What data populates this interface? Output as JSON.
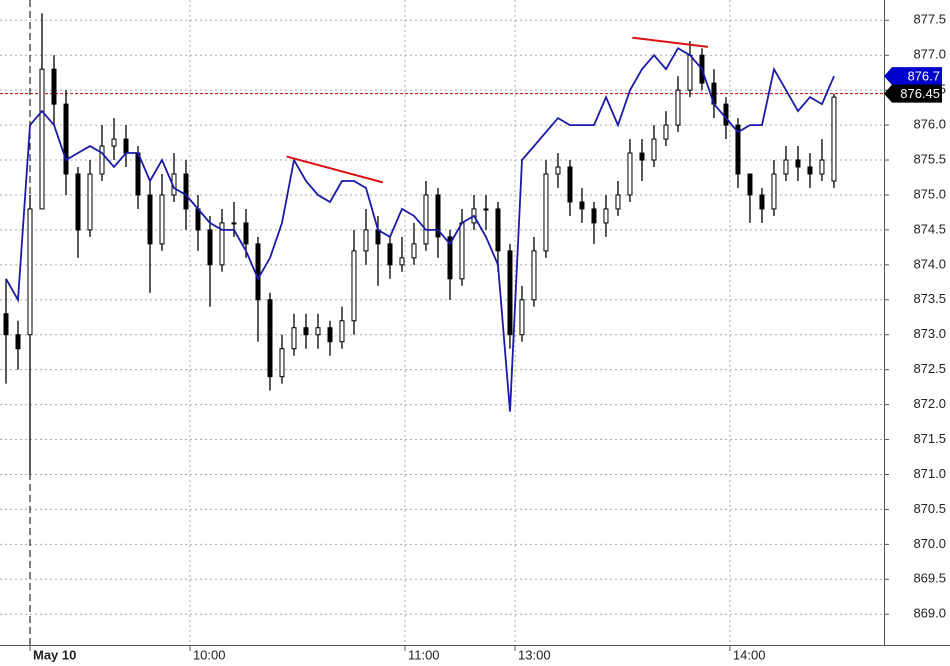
{
  "chart_data": {
    "type": "candlestick",
    "xlim": [
      -0.5,
      73.17
    ],
    "xticks": [
      {
        "value": 2,
        "label": "May 10"
      },
      {
        "value": 15.33,
        "label": "10:00"
      },
      {
        "value": 33.25,
        "label": "11:00"
      },
      {
        "value": 42.42,
        "label": "13:00"
      },
      {
        "value": 60.33,
        "label": "14:00"
      }
    ],
    "ylim": [
      868.56,
      877.79
    ],
    "yticks": [
      {
        "value": 869,
        "label": "869.0"
      },
      869.5,
      {
        "value": 870,
        "label": "870.0"
      },
      870.5,
      {
        "value": 871,
        "label": "871.0"
      },
      871.5,
      {
        "value": 872,
        "label": "872.0"
      },
      872.5,
      {
        "value": 873,
        "label": "873.0"
      },
      873.5,
      {
        "value": 874,
        "label": "874.0"
      },
      874.5,
      {
        "value": 875,
        "label": "875.0"
      },
      875.5,
      {
        "value": 876,
        "label": "876.0"
      },
      876.5,
      {
        "value": 877,
        "label": "877.0"
      },
      877.5
    ],
    "grid": true,
    "ohlc": {
      "open": [
        873.3,
        873.0,
        873.0,
        874.8,
        876.8,
        876.3,
        875.3,
        874.5,
        875.3,
        875.7,
        875.8,
        875.6,
        875.0,
        874.3,
        875.0,
        875.3,
        874.8,
        874.5,
        874.0,
        874.6,
        874.6,
        874.3,
        873.5,
        872.4,
        872.8,
        873.1,
        873.0,
        873.1,
        872.9,
        873.2,
        874.2,
        874.5,
        874.3,
        874.0,
        874.1,
        874.3,
        875.0,
        874.4,
        873.8,
        874.6,
        874.8,
        874.8,
        874.2,
        873.0,
        873.5,
        874.2,
        875.3,
        875.4,
        874.9,
        874.8,
        874.6,
        874.8,
        875.0,
        875.6,
        875.5,
        875.8,
        876.0,
        876.5,
        877.0,
        876.6,
        876.3,
        876.0,
        875.3,
        875.0,
        874.8,
        875.3,
        875.5,
        875.4,
        875.3,
        875.2
      ],
      "high": [
        873.8,
        873.2,
        875.0,
        877.6,
        877.0,
        876.5,
        875.4,
        875.5,
        876.0,
        876.1,
        876.0,
        875.7,
        875.2,
        875.3,
        875.6,
        875.5,
        875.0,
        874.7,
        874.8,
        874.9,
        874.8,
        874.4,
        873.6,
        873.0,
        873.3,
        873.3,
        873.3,
        873.2,
        873.4,
        874.5,
        874.8,
        874.7,
        874.4,
        874.4,
        874.6,
        875.2,
        875.1,
        874.5,
        874.8,
        875.0,
        875.0,
        874.9,
        874.3,
        873.7,
        874.4,
        875.5,
        875.6,
        875.5,
        875.1,
        874.9,
        875.0,
        875.2,
        875.8,
        875.8,
        876.0,
        876.2,
        876.7,
        877.2,
        877.1,
        876.8,
        876.4,
        876.1,
        875.3,
        875.1,
        875.5,
        875.7,
        875.7,
        875.6,
        875.8,
        876.45
      ],
      "low": [
        872.3,
        872.5,
        871.0,
        874.8,
        876.0,
        875.0,
        874.1,
        874.4,
        875.2,
        875.5,
        875.4,
        874.8,
        873.6,
        874.2,
        874.9,
        874.5,
        874.2,
        873.4,
        873.9,
        874.4,
        874.1,
        872.9,
        872.2,
        872.3,
        872.7,
        872.8,
        872.8,
        872.7,
        872.8,
        873.0,
        874.0,
        873.7,
        873.8,
        873.9,
        874.0,
        874.2,
        874.1,
        873.5,
        873.7,
        874.5,
        874.5,
        873.9,
        872.8,
        872.9,
        873.4,
        874.1,
        875.1,
        874.7,
        874.6,
        874.3,
        874.4,
        874.7,
        874.9,
        875.2,
        875.4,
        875.7,
        875.9,
        876.4,
        876.5,
        876.1,
        875.8,
        875.1,
        874.6,
        874.6,
        874.7,
        875.2,
        875.2,
        875.1,
        875.2,
        875.1
      ],
      "close": [
        873.0,
        872.8,
        874.8,
        876.8,
        876.3,
        875.3,
        874.5,
        875.3,
        875.7,
        875.8,
        875.6,
        875.0,
        874.3,
        875.0,
        875.3,
        874.8,
        874.5,
        874.0,
        874.6,
        874.6,
        874.3,
        873.5,
        872.4,
        872.8,
        873.1,
        873.0,
        873.1,
        872.9,
        873.2,
        874.2,
        874.5,
        874.3,
        874.0,
        874.1,
        874.3,
        875.0,
        874.4,
        873.8,
        874.6,
        874.8,
        874.8,
        874.2,
        873.0,
        873.5,
        874.2,
        875.3,
        875.4,
        874.9,
        874.8,
        874.6,
        874.8,
        875.0,
        875.6,
        875.5,
        875.8,
        876.0,
        876.5,
        877.0,
        876.6,
        876.3,
        876.0,
        875.3,
        875.0,
        874.8,
        875.3,
        875.5,
        875.4,
        875.3,
        875.5,
        876.4
      ]
    },
    "series": [
      {
        "color": "#1a1aaa",
        "values": [
          873.8,
          873.5,
          876.0,
          876.2,
          876.0,
          875.5,
          875.6,
          875.7,
          875.6,
          875.4,
          875.6,
          875.6,
          875.2,
          875.5,
          875.1,
          875.0,
          874.8,
          874.6,
          874.5,
          874.5,
          874.2,
          873.8,
          874.1,
          874.6,
          875.5,
          875.2,
          875.0,
          874.9,
          875.2,
          875.2,
          875.1,
          874.5,
          874.4,
          874.8,
          874.7,
          874.5,
          874.5,
          874.3,
          874.6,
          874.7,
          874.4,
          874.0,
          871.9,
          875.5,
          875.7,
          875.9,
          876.1,
          876.0,
          876.0,
          876.0,
          876.4,
          876.0,
          876.5,
          876.8,
          877.0,
          876.8,
          877.1,
          877.0,
          876.8,
          876.3,
          876.1,
          875.9,
          876.0,
          876.0,
          876.8,
          876.5,
          876.2,
          876.4,
          876.3,
          876.7
        ]
      }
    ],
    "trendlines": [
      {
        "color": "#dd1111",
        "x": [
          23.4,
          31.4
        ],
        "y": [
          875.55,
          875.18
        ]
      },
      {
        "color": "#dd1111",
        "x": [
          52.2,
          58.5
        ],
        "y": [
          877.25,
          877.12
        ]
      }
    ],
    "price_line": {
      "value": 876.45,
      "color": "#cc0000"
    },
    "price_labels": [
      {
        "value": 876.7,
        "color": "#0000cc"
      },
      {
        "value": 876.45,
        "color": "#000000"
      }
    ]
  }
}
